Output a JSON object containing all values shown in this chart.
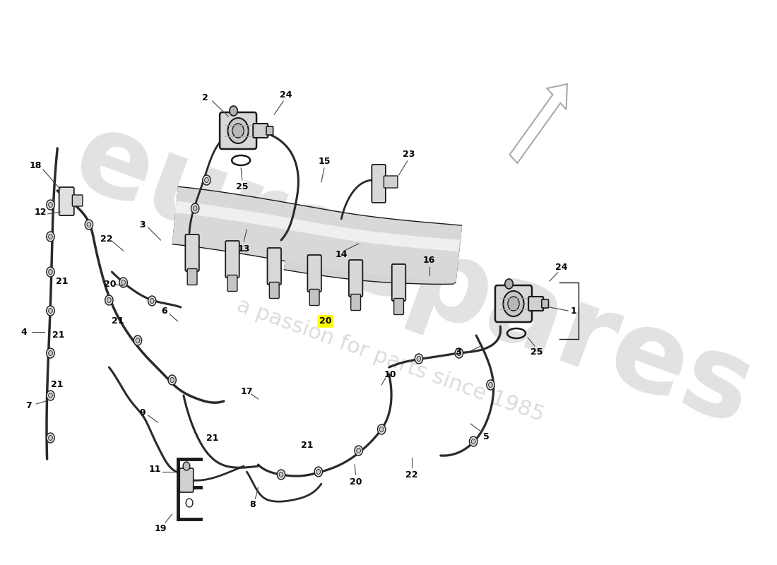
{
  "bg": "#ffffff",
  "lc": "#1a1a1a",
  "wm1_color": "#d8d8d8",
  "wm2_color": "#d0d0d0",
  "highlight": "#ffff00",
  "arrow_color": "#c8c8c8",
  "part_color": "#e0e0e0",
  "part_edge": "#1a1a1a",
  "hose_color": "#2a2a2a",
  "rail_fill": "#e8e8e8",
  "label_fs": 9,
  "figw": 11.0,
  "figh": 8.0,
  "dpi": 100
}
